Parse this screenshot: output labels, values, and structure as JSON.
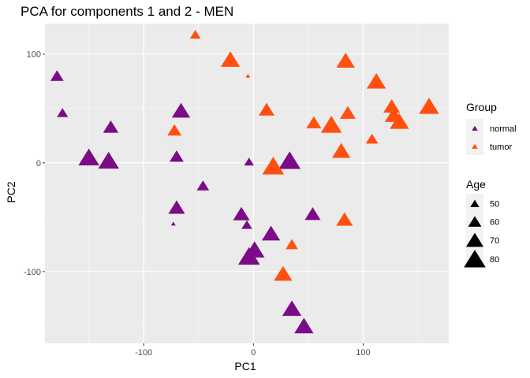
{
  "chart_data": {
    "type": "scatter",
    "title": "PCA for components 1 and 2 - MEN",
    "xlabel": "PC1",
    "ylabel": "PC2",
    "xlim": [
      -190,
      178
    ],
    "ylim": [
      -166,
      128
    ],
    "x_ticks": [
      -100,
      0,
      100
    ],
    "y_ticks": [
      -100,
      0,
      100
    ],
    "x_tick_labels": [
      "-100",
      "0",
      "100"
    ],
    "y_tick_labels": [
      "-100",
      "0",
      "100"
    ],
    "grid": true,
    "marker": "triangle",
    "legend_position": "right",
    "color_legend": {
      "title": "Group",
      "items": [
        {
          "label": "normal",
          "color": "#7b0b86"
        },
        {
          "label": "tumor",
          "color": "#ff5010"
        }
      ]
    },
    "size_legend": {
      "title": "Age",
      "items": [
        {
          "label": "50",
          "value": 50
        },
        {
          "label": "60",
          "value": 60
        },
        {
          "label": "70",
          "value": 70
        },
        {
          "label": "80",
          "value": 80
        }
      ]
    },
    "series": [
      {
        "name": "normal",
        "color": "#7b0b86",
        "points": [
          {
            "x": -179,
            "y": 80,
            "age": 60
          },
          {
            "x": -174,
            "y": 46,
            "age": 55
          },
          {
            "x": -130,
            "y": 33,
            "age": 65
          },
          {
            "x": -150,
            "y": 5,
            "age": 78
          },
          {
            "x": -132,
            "y": 2,
            "age": 78
          },
          {
            "x": -66,
            "y": 48,
            "age": 72
          },
          {
            "x": -70,
            "y": 6,
            "age": 62
          },
          {
            "x": -46,
            "y": -21,
            "age": 58
          },
          {
            "x": -70,
            "y": -41,
            "age": 68
          },
          {
            "x": -73,
            "y": -56,
            "age": 40
          },
          {
            "x": -4,
            "y": 1,
            "age": 52
          },
          {
            "x": 33,
            "y": 2,
            "age": 80
          },
          {
            "x": -11,
            "y": -47,
            "age": 68
          },
          {
            "x": -6,
            "y": -57,
            "age": 54
          },
          {
            "x": 16,
            "y": -65,
            "age": 72
          },
          {
            "x": 54,
            "y": -47,
            "age": 66
          },
          {
            "x": 1,
            "y": -80,
            "age": 76
          },
          {
            "x": -4,
            "y": -86,
            "age": 80
          },
          {
            "x": 35,
            "y": -134,
            "age": 74
          },
          {
            "x": 46,
            "y": -150,
            "age": 74
          }
        ]
      },
      {
        "name": "tumor",
        "color": "#ff5010",
        "points": [
          {
            "x": -53,
            "y": 118,
            "age": 54
          },
          {
            "x": -21,
            "y": 95,
            "age": 74
          },
          {
            "x": -5,
            "y": 80,
            "age": 40
          },
          {
            "x": 84,
            "y": 94,
            "age": 72
          },
          {
            "x": 112,
            "y": 75,
            "age": 74
          },
          {
            "x": 12,
            "y": 49,
            "age": 66
          },
          {
            "x": -72,
            "y": 30,
            "age": 62
          },
          {
            "x": 55,
            "y": 37,
            "age": 64
          },
          {
            "x": 71,
            "y": 35,
            "age": 78
          },
          {
            "x": 86,
            "y": 46,
            "age": 66
          },
          {
            "x": 126,
            "y": 52,
            "age": 68
          },
          {
            "x": 128,
            "y": 44,
            "age": 72
          },
          {
            "x": 133,
            "y": 38,
            "age": 74
          },
          {
            "x": 160,
            "y": 52,
            "age": 76
          },
          {
            "x": 108,
            "y": 22,
            "age": 58
          },
          {
            "x": 80,
            "y": 11,
            "age": 72
          },
          {
            "x": 18,
            "y": -3,
            "age": 80
          },
          {
            "x": 83,
            "y": -52,
            "age": 68
          },
          {
            "x": 35,
            "y": -75,
            "age": 58
          },
          {
            "x": 27,
            "y": -102,
            "age": 72
          }
        ]
      }
    ]
  }
}
